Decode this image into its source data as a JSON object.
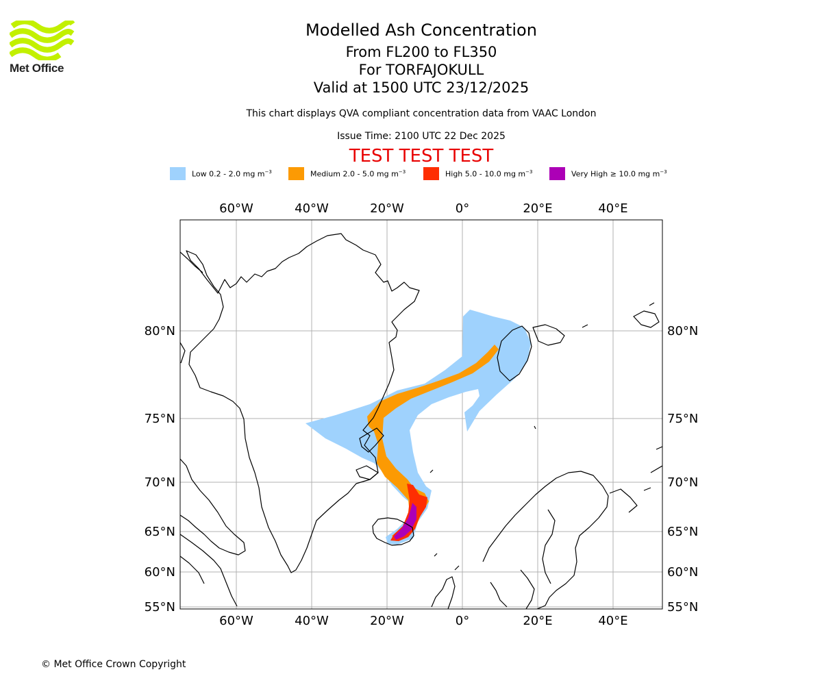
{
  "header": {
    "logo_text": "Met Office",
    "title": "Modelled Ash Concentration",
    "levels": "From FL200 to FL350",
    "volcano": "For TORFAJOKULL",
    "valid": "Valid at 1500 UTC 23/12/2025",
    "description": "This chart displays QVA compliant concentration data from VAAC London",
    "issue_time": "Issue Time: 2100 UTC 22 Dec 2025",
    "test_banner": "TEST TEST TEST"
  },
  "legend": [
    {
      "label": "Low 0.2 - 2.0 mg m",
      "unit_exp": "−3",
      "color": "#9fd2fd"
    },
    {
      "label": "Medium 2.0 - 5.0 mg m",
      "unit_exp": "−3",
      "color": "#fc9a03"
    },
    {
      "label": "High 5.0 - 10.0 mg m",
      "unit_exp": "−3",
      "color": "#fe2e02"
    },
    {
      "label": "Very High  ≥  10.0 mg m",
      "unit_exp": "−3",
      "color": "#ac00b6"
    }
  ],
  "map": {
    "lon_ticks": [
      "60°W",
      "40°W",
      "20°W",
      "0°",
      "20°E",
      "40°E"
    ],
    "lat_ticks": [
      "80°N",
      "75°N",
      "70°N",
      "65°N",
      "60°N",
      "55°N"
    ]
  },
  "footer": {
    "copyright": "© Met Office Crown Copyright"
  }
}
